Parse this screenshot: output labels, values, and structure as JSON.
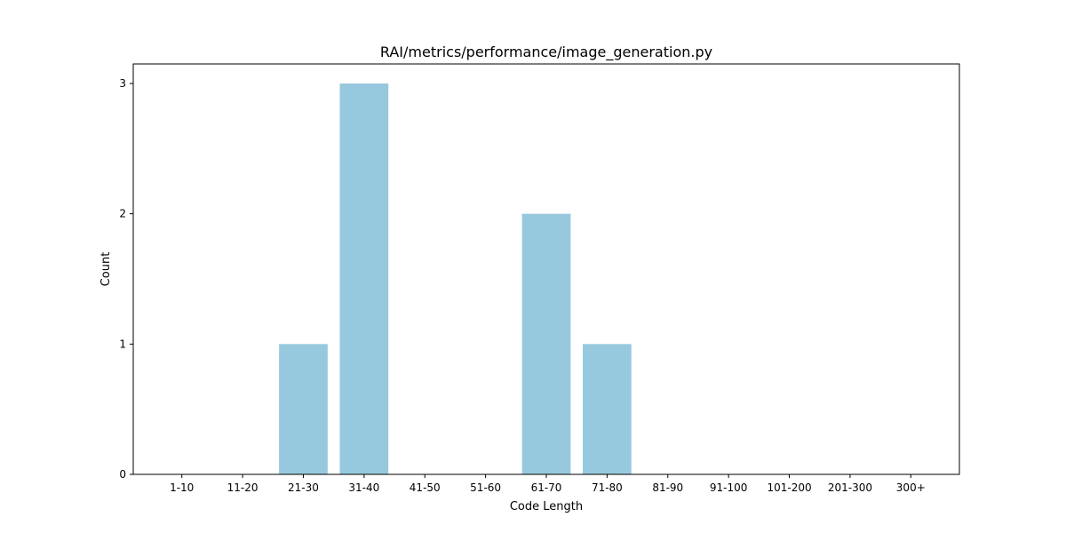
{
  "chart_data": {
    "type": "bar",
    "title": "RAI/metrics/performance/image_generation.py",
    "xlabel": "Code Length",
    "ylabel": "Count",
    "categories": [
      "1-10",
      "11-20",
      "21-30",
      "31-40",
      "41-50",
      "51-60",
      "61-70",
      "71-80",
      "81-90",
      "91-100",
      "101-200",
      "201-300",
      "300+"
    ],
    "values": [
      0,
      0,
      1,
      3,
      0,
      0,
      2,
      1,
      0,
      0,
      0,
      0,
      0
    ],
    "yticks": [
      0,
      1,
      2,
      3
    ],
    "ylim": [
      0,
      3.15
    ],
    "grid": false,
    "legend": "none",
    "bar_color": "#96c9dd"
  }
}
